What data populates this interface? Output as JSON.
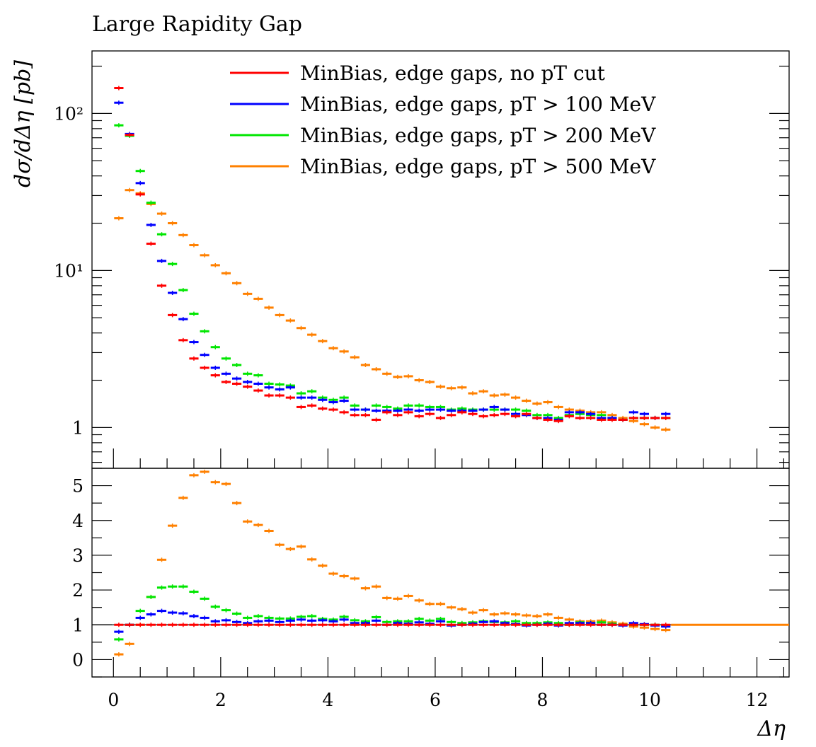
{
  "chart_data": {
    "type": "scatter",
    "title": "Large Rapidity Gap",
    "xlabel": "Δη",
    "ylabel": "dσ/dΔη [pb]",
    "xlim": [
      -0.4,
      12.6
    ],
    "ylim": [
      0.55,
      250
    ],
    "yscale": "log",
    "legend_position": "top-right",
    "bin_width": 0.2,
    "x_ticks": [
      "0",
      "2",
      "4",
      "6",
      "8",
      "10",
      "12"
    ],
    "y_ticks": [
      "1",
      "10¹",
      "10²"
    ],
    "ratio_ylim": [
      -0.5,
      5.5
    ],
    "ratio_ticks": [
      "0",
      "1",
      "2",
      "3",
      "4",
      "5"
    ],
    "ratio_reference": 1,
    "x": [
      0.1,
      0.3,
      0.5,
      0.7,
      0.9,
      1.1,
      1.3,
      1.5,
      1.7,
      1.9,
      2.1,
      2.3,
      2.5,
      2.7,
      2.9,
      3.1,
      3.3,
      3.5,
      3.7,
      3.9,
      4.1,
      4.3,
      4.5,
      4.7,
      4.9,
      5.1,
      5.3,
      5.5,
      5.7,
      5.9,
      6.1,
      6.3,
      6.5,
      6.7,
      6.9,
      7.1,
      7.3,
      7.5,
      7.7,
      7.9,
      8.1,
      8.3,
      8.5,
      8.7,
      8.9,
      9.1,
      9.3,
      9.5,
      9.7,
      9.9,
      10.1,
      10.3
    ],
    "series": [
      {
        "name": "MinBias, edge gaps, no pT cut",
        "color": "#ff0000",
        "values": [
          145,
          73,
          30.5,
          14.8,
          8.0,
          5.2,
          3.6,
          2.75,
          2.4,
          2.15,
          1.95,
          1.9,
          1.82,
          1.72,
          1.6,
          1.6,
          1.55,
          1.35,
          1.38,
          1.32,
          1.3,
          1.25,
          1.2,
          1.2,
          1.12,
          1.25,
          1.2,
          1.25,
          1.18,
          1.22,
          1.15,
          1.2,
          1.25,
          1.22,
          1.18,
          1.2,
          1.22,
          1.18,
          1.22,
          1.15,
          1.12,
          1.1,
          1.18,
          1.15,
          1.15,
          1.12,
          1.12,
          1.12,
          1.15,
          1.15,
          1.15,
          1.15
        ],
        "ratio": [
          1,
          1,
          1,
          1,
          1,
          1,
          1,
          1,
          1,
          1,
          1,
          1,
          1,
          1,
          1,
          1,
          1,
          1,
          1,
          1,
          1,
          1,
          1,
          1,
          1,
          1,
          1,
          1,
          1,
          1,
          1,
          1,
          1,
          1,
          1,
          1,
          1,
          1,
          1,
          1,
          1,
          1,
          1,
          1,
          1,
          1,
          1,
          1,
          1,
          1,
          1,
          1
        ]
      },
      {
        "name": "MinBias, edge gaps, pT > 100 MeV",
        "color": "#0000ff",
        "values": [
          117,
          74,
          36,
          19.5,
          11.5,
          7.2,
          4.9,
          3.5,
          2.9,
          2.4,
          2.2,
          2.05,
          1.95,
          1.9,
          1.8,
          1.75,
          1.8,
          1.55,
          1.55,
          1.5,
          1.45,
          1.48,
          1.3,
          1.3,
          1.28,
          1.28,
          1.28,
          1.3,
          1.28,
          1.3,
          1.3,
          1.28,
          1.28,
          1.28,
          1.3,
          1.35,
          1.3,
          1.22,
          1.2,
          1.15,
          1.15,
          1.12,
          1.25,
          1.25,
          1.22,
          1.15,
          1.15,
          1.12,
          1.25,
          1.22,
          1.15,
          1.22
        ],
        "ratio": [
          0.8,
          1.0,
          1.2,
          1.3,
          1.4,
          1.35,
          1.33,
          1.25,
          1.2,
          1.1,
          1.13,
          1.08,
          1.05,
          1.1,
          1.12,
          1.08,
          1.12,
          1.15,
          1.12,
          1.13,
          1.1,
          1.15,
          1.05,
          1.05,
          1.12,
          1.0,
          1.05,
          1.03,
          1.07,
          1.03,
          1.1,
          0.98,
          1.0,
          1.03,
          1.08,
          1.1,
          1.05,
          1.02,
          0.98,
          1.0,
          1.03,
          0.98,
          1.05,
          1.05,
          1.05,
          1.0,
          1.0,
          0.98,
          1.05,
          1.02,
          0.98,
          0.95
        ]
      },
      {
        "name": "MinBias, edge gaps, pT > 200 MeV",
        "color": "#00e600",
        "values": [
          84,
          72,
          43,
          27,
          17,
          11,
          7.5,
          5.3,
          4.1,
          3.25,
          2.75,
          2.5,
          2.2,
          2.15,
          1.9,
          1.88,
          1.85,
          1.65,
          1.7,
          1.55,
          1.5,
          1.55,
          1.38,
          1.3,
          1.38,
          1.35,
          1.32,
          1.38,
          1.38,
          1.35,
          1.35,
          1.3,
          1.32,
          1.3,
          1.3,
          1.3,
          1.3,
          1.3,
          1.28,
          1.2,
          1.2,
          1.15,
          1.2,
          1.22,
          1.2,
          1.2,
          1.15,
          1.12,
          1.15,
          1.15,
          1.15,
          1.15
        ],
        "ratio": [
          0.58,
          1.0,
          1.4,
          1.8,
          2.07,
          2.1,
          2.1,
          1.95,
          1.75,
          1.52,
          1.42,
          1.32,
          1.2,
          1.25,
          1.2,
          1.18,
          1.18,
          1.23,
          1.25,
          1.17,
          1.15,
          1.23,
          1.13,
          1.1,
          1.22,
          1.08,
          1.1,
          1.1,
          1.17,
          1.12,
          1.17,
          1.08,
          1.05,
          1.07,
          1.1,
          1.08,
          1.07,
          1.1,
          1.05,
          1.05,
          1.07,
          1.05,
          1.0,
          1.07,
          1.05,
          1.07,
          1.03,
          1.0,
          1.0,
          1.0,
          1.0,
          0.97
        ]
      },
      {
        "name": "MinBias, edge gaps, pT > 500 MeV",
        "color": "#ff8000",
        "values": [
          21.5,
          32.5,
          31,
          26.5,
          23,
          20,
          16.8,
          14.5,
          12.5,
          10.8,
          9.6,
          8.3,
          7.1,
          6.6,
          5.8,
          5.2,
          4.8,
          4.3,
          3.9,
          3.55,
          3.2,
          3.05,
          2.8,
          2.5,
          2.35,
          2.2,
          2.1,
          2.12,
          2.0,
          1.95,
          1.82,
          1.78,
          1.8,
          1.65,
          1.7,
          1.6,
          1.62,
          1.55,
          1.48,
          1.42,
          1.45,
          1.35,
          1.3,
          1.28,
          1.25,
          1.25,
          1.2,
          1.15,
          1.1,
          1.05,
          1.0,
          0.97
        ],
        "ratio": [
          0.15,
          0.45,
          1.0,
          1.8,
          2.87,
          3.85,
          4.65,
          5.3,
          5.4,
          5.1,
          5.05,
          4.5,
          3.97,
          3.87,
          3.7,
          3.3,
          3.18,
          3.25,
          2.88,
          2.7,
          2.47,
          2.4,
          2.33,
          2.05,
          2.1,
          1.77,
          1.75,
          1.83,
          1.7,
          1.6,
          1.6,
          1.5,
          1.45,
          1.35,
          1.42,
          1.3,
          1.33,
          1.3,
          1.27,
          1.25,
          1.3,
          1.2,
          1.15,
          1.1,
          1.1,
          1.12,
          1.07,
          1.03,
          0.95,
          0.92,
          0.88,
          0.85
        ]
      }
    ]
  }
}
